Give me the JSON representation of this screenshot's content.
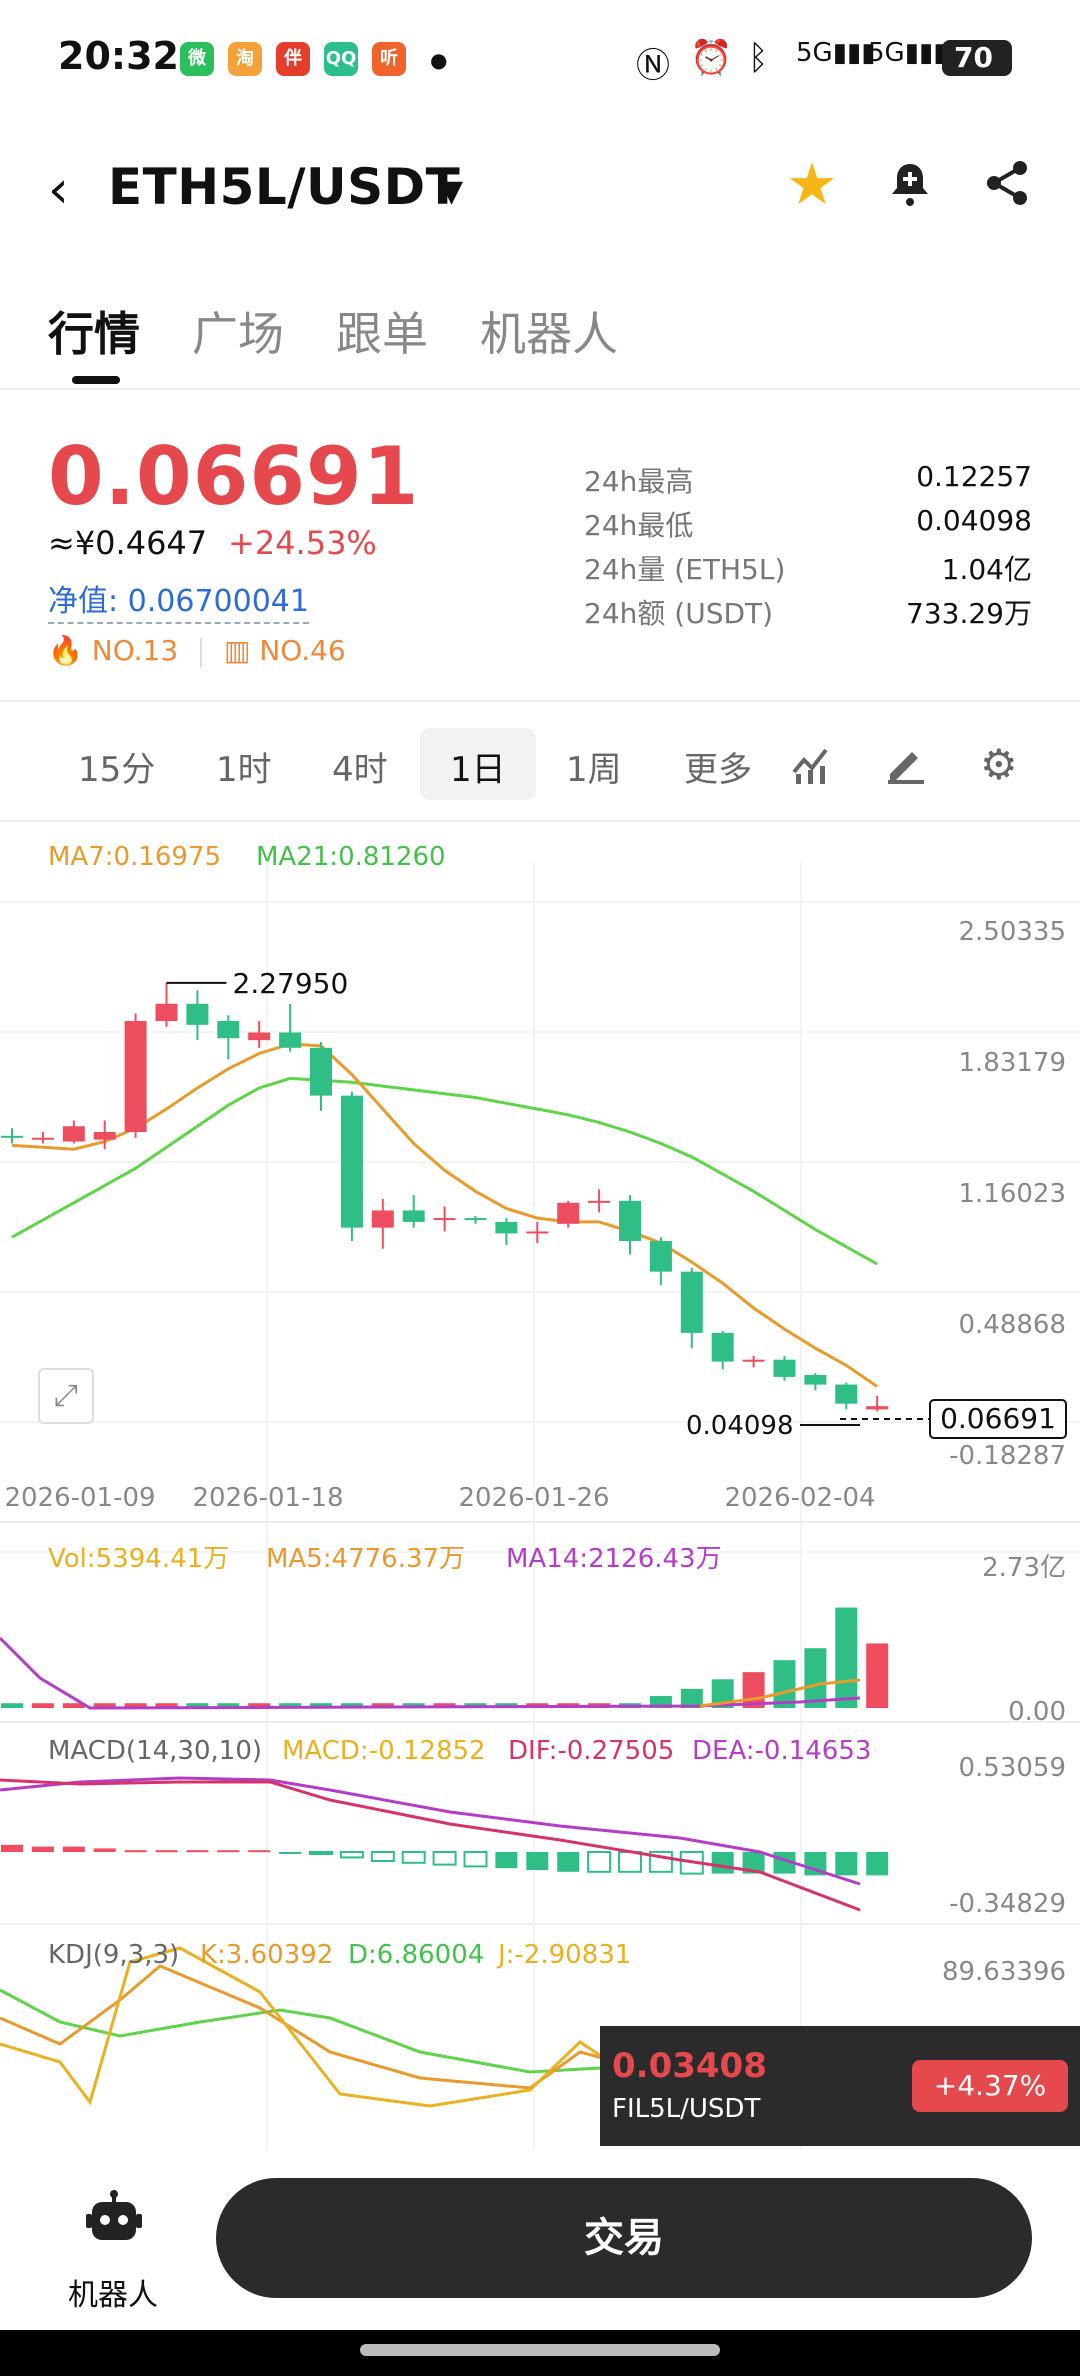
{
  "status_bar": {
    "time": "20:32",
    "battery": "70",
    "apps": [
      "微",
      "淘",
      "伴",
      "QQ",
      "听"
    ]
  },
  "header": {
    "pair": "ETH5L/USDT"
  },
  "tabs": [
    "行情",
    "广场",
    "跟单",
    "机器人"
  ],
  "price": {
    "last": "0.06691",
    "cny": "≈¥0.4647",
    "change": "+24.53%",
    "nav_label": "净值: 0.06700041",
    "rank1": "NO.13",
    "rank2": "NO.46",
    "stats": [
      {
        "label": "24h最高",
        "value": "0.12257"
      },
      {
        "label": "24h最低",
        "value": "0.04098"
      },
      {
        "label": "24h量 (ETH5L)",
        "value": "1.04亿"
      },
      {
        "label": "24h额 (USDT)",
        "value": "733.29万"
      }
    ]
  },
  "timeframes": [
    "15分",
    "1时",
    "4时",
    "1日",
    "1周",
    "更多"
  ],
  "chart": {
    "ma_legend": {
      "ma7": "MA7:0.16975",
      "ma21": "MA21:0.81260"
    },
    "price_ticks": [
      "2.50335",
      "1.83179",
      "1.16023",
      "0.48868",
      "-0.18287"
    ],
    "high_label": "2.27950",
    "low_label": "0.04098",
    "current_label": "0.06691",
    "dates": [
      "2026-01-09",
      "2026-01-18",
      "2026-01-26",
      "2026-02-04"
    ],
    "vol_legend": {
      "vol": "Vol:5394.41万",
      "ma5": "MA5:4776.37万",
      "ma14": "MA14:2126.43万"
    },
    "vol_ticks": [
      "2.73亿",
      "0.00"
    ],
    "macd_legend": {
      "name": "MACD(14,30,10)",
      "macd": "MACD:-0.12852",
      "dif": "DIF:-0.27505",
      "dea": "DEA:-0.14653"
    },
    "macd_ticks": [
      "0.53059",
      "-0.34829"
    ],
    "kdj_legend": {
      "name": "KDJ(9,3,3)",
      "k": "K:3.60392",
      "d": "D:6.86004",
      "j": "J:-2.90831"
    },
    "kdj_ticks": [
      "89.63396"
    ]
  },
  "chart_data": {
    "type": "candlestick",
    "candles": [
      {
        "o": 1.48,
        "c": 1.47,
        "h": 1.52,
        "l": 1.44
      },
      {
        "o": 1.46,
        "c": 1.47,
        "h": 1.5,
        "l": 1.44
      },
      {
        "o": 1.45,
        "c": 1.53,
        "h": 1.56,
        "l": 1.44
      },
      {
        "o": 1.46,
        "c": 1.5,
        "h": 1.56,
        "l": 1.41
      },
      {
        "o": 1.5,
        "c": 2.08,
        "h": 2.12,
        "l": 1.47
      },
      {
        "o": 2.08,
        "c": 2.17,
        "h": 2.28,
        "l": 2.05
      },
      {
        "o": 2.17,
        "c": 2.06,
        "h": 2.24,
        "l": 1.98
      },
      {
        "o": 2.08,
        "c": 1.99,
        "h": 2.11,
        "l": 1.88
      },
      {
        "o": 1.98,
        "c": 2.02,
        "h": 2.08,
        "l": 1.94
      },
      {
        "o": 2.02,
        "c": 1.94,
        "h": 2.17,
        "l": 1.92
      },
      {
        "o": 1.94,
        "c": 1.69,
        "h": 1.97,
        "l": 1.61
      },
      {
        "o": 1.69,
        "c": 1.0,
        "h": 1.71,
        "l": 0.93
      },
      {
        "o": 1.0,
        "c": 1.09,
        "h": 1.15,
        "l": 0.89
      },
      {
        "o": 1.09,
        "c": 1.03,
        "h": 1.17,
        "l": 1.0
      },
      {
        "o": 1.04,
        "c": 1.05,
        "h": 1.11,
        "l": 0.98
      },
      {
        "o": 1.05,
        "c": 1.04,
        "h": 1.06,
        "l": 1.02
      },
      {
        "o": 1.03,
        "c": 0.97,
        "h": 1.05,
        "l": 0.91
      },
      {
        "o": 0.97,
        "c": 0.98,
        "h": 1.03,
        "l": 0.92
      },
      {
        "o": 1.02,
        "c": 1.13,
        "h": 1.14,
        "l": 1.0
      },
      {
        "o": 1.13,
        "c": 1.14,
        "h": 1.2,
        "l": 1.08
      },
      {
        "o": 1.14,
        "c": 0.93,
        "h": 1.17,
        "l": 0.86
      },
      {
        "o": 0.93,
        "c": 0.77,
        "h": 0.95,
        "l": 0.7
      },
      {
        "o": 0.77,
        "c": 0.45,
        "h": 0.79,
        "l": 0.37
      },
      {
        "o": 0.45,
        "c": 0.3,
        "h": 0.46,
        "l": 0.26
      },
      {
        "o": 0.3,
        "c": 0.31,
        "h": 0.33,
        "l": 0.27
      },
      {
        "o": 0.31,
        "c": 0.22,
        "h": 0.33,
        "l": 0.2
      },
      {
        "o": 0.23,
        "c": 0.18,
        "h": 0.24,
        "l": 0.15
      },
      {
        "o": 0.18,
        "c": 0.08,
        "h": 0.19,
        "l": 0.05
      },
      {
        "o": 0.05,
        "c": 0.067,
        "h": 0.12,
        "l": 0.04
      }
    ],
    "ma7": [
      1.43,
      1.42,
      1.41,
      1.45,
      1.52,
      1.62,
      1.73,
      1.83,
      1.91,
      1.96,
      1.95,
      1.8,
      1.62,
      1.44,
      1.3,
      1.19,
      1.1,
      1.05,
      1.03,
      1.03,
      0.98,
      0.92,
      0.82,
      0.71,
      0.58,
      0.47,
      0.37,
      0.28,
      0.17
    ],
    "ma21": [
      0.95,
      1.04,
      1.13,
      1.22,
      1.31,
      1.42,
      1.53,
      1.64,
      1.73,
      1.78,
      1.77,
      1.76,
      1.74,
      1.72,
      1.7,
      1.68,
      1.65,
      1.62,
      1.59,
      1.55,
      1.5,
      1.44,
      1.37,
      1.28,
      1.19,
      1.09,
      0.99,
      0.9,
      0.81
    ],
    "volume": [
      0.02,
      0.02,
      0.02,
      0.02,
      0.02,
      0.02,
      0.02,
      0.02,
      0.02,
      0.02,
      0.02,
      0.02,
      0.02,
      0.02,
      0.02,
      0.02,
      0.02,
      0.02,
      0.02,
      0.02,
      0.02,
      0.05,
      0.08,
      0.12,
      0.15,
      0.2,
      0.25,
      0.42,
      0.27
    ],
    "macd_hist": [
      0.04,
      0.03,
      0.03,
      0.02,
      0.01,
      0.01,
      0.01,
      0.01,
      0.01,
      0.0,
      -0.01,
      -0.03,
      -0.05,
      -0.06,
      -0.07,
      -0.08,
      -0.09,
      -0.1,
      -0.11,
      -0.11,
      -0.11,
      -0.11,
      -0.12,
      -0.12,
      -0.12,
      -0.12,
      -0.13,
      -0.13,
      -0.13
    ],
    "kdj_k": [
      70,
      60,
      50,
      42,
      35,
      38,
      48,
      58,
      62,
      60,
      55,
      48,
      42,
      38,
      35,
      32,
      30,
      28,
      26,
      24,
      22,
      20,
      18,
      16,
      14,
      12,
      10,
      8,
      3.6
    ]
  },
  "popup": {
    "price": "0.03408",
    "pair": "FIL5L/USDT",
    "change": "+4.37%"
  },
  "bottom": {
    "robot_label": "机器人",
    "trade_label": "交易"
  }
}
